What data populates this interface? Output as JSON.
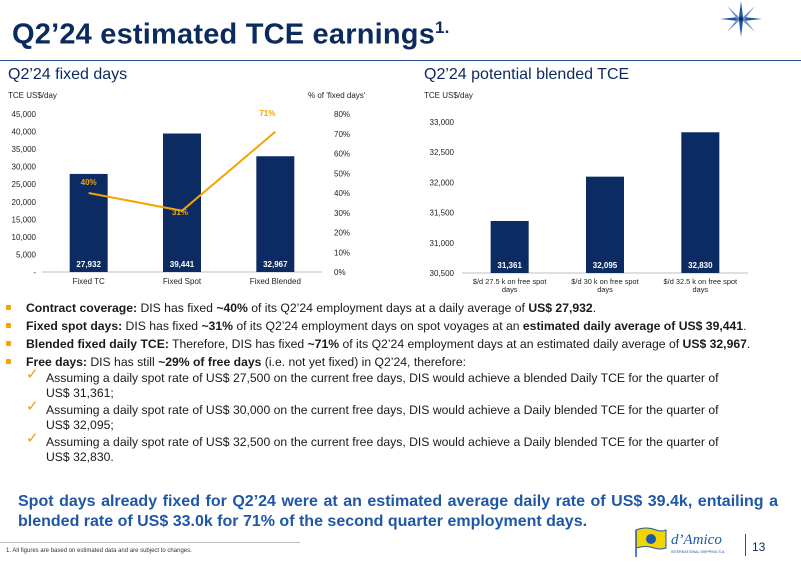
{
  "title": "Q2’24 estimated TCE earnings",
  "title_sup": "1.",
  "chart_data": [
    {
      "type": "bar",
      "title": "Q2’24 fixed days",
      "ylabel": "TCE US$/day",
      "y2label": "% of 'fixed days'",
      "categories": [
        "Fixed TC",
        "Fixed Spot",
        "Fixed Blended"
      ],
      "series": [
        {
          "type": "bar",
          "axis": "left",
          "values": [
            27932,
            39441,
            32967
          ],
          "labels": [
            "27,932",
            "39,441",
            "32,967"
          ],
          "color": "#0d2b63"
        },
        {
          "type": "line",
          "axis": "right",
          "values": [
            40,
            31,
            71
          ],
          "labels": [
            "40%",
            "31%",
            "71%"
          ],
          "color": "#f5a300"
        }
      ],
      "yticks": [
        "-",
        "5,000",
        "10,000",
        "15,000",
        "20,000",
        "25,000",
        "30,000",
        "35,000",
        "40,000",
        "45,000"
      ],
      "ylim": [
        0,
        45000
      ],
      "y2ticks": [
        "0%",
        "10%",
        "20%",
        "30%",
        "40%",
        "50%",
        "60%",
        "70%",
        "80%"
      ],
      "y2lim": [
        0,
        80
      ],
      "grid": false
    },
    {
      "type": "bar",
      "title": "Q2’24 potential blended TCE",
      "ylabel": "TCE US$/day",
      "categories": [
        [
          "$/d 27.5 k on free spot",
          "days"
        ],
        [
          "$/d 30 k on free spot",
          "days"
        ],
        [
          "$/d 32.5 k on free spot",
          "days"
        ]
      ],
      "values": [
        31361,
        32095,
        32830
      ],
      "labels": [
        "31,361",
        "32,095",
        "32,830"
      ],
      "yticks": [
        "30,500",
        "31,000",
        "31,500",
        "32,000",
        "32,500",
        "33,000"
      ],
      "ylim": [
        30500,
        33000
      ],
      "color": "#0d2b63",
      "grid": false
    }
  ],
  "bullets": [
    {
      "bold": "Contract coverage:",
      "t1": " DIS has fixed ",
      "b2": "~40%",
      "t2": " of its Q2’24 employment days at a daily average of ",
      "b3": "US$ 27,932",
      "t3": "."
    },
    {
      "bold": "Fixed spot days:",
      "t1": " DIS has fixed ",
      "b2": "~31%",
      "t2": " of its Q2’24 employment days on spot voyages at an ",
      "b3": "estimated daily average of US$ 39,441",
      "t3": "."
    },
    {
      "bold": "Blended fixed daily TCE:",
      "t1": " Therefore, DIS has fixed ",
      "b2": "~71%",
      "t2": " of its Q2’24 employment days at an estimated daily average of ",
      "b3": "US$ 32,967",
      "t3": "."
    },
    {
      "bold": "Free days:",
      "t1": " DIS has still ",
      "b2": "~29% of free days",
      "t2": " (i.e. not yet fixed) in Q2’24, therefore:",
      "b3": "",
      "t3": ""
    }
  ],
  "sub_bullets": [
    "Assuming a daily spot rate of US$ 27,500 on the current free days, DIS would achieve a blended Daily TCE for the quarter of US$ 31,361;",
    "Assuming a daily spot rate of US$ 30,000 on the current free days, DIS would achieve a Daily blended TCE for the quarter of US$ 32,095;",
    "Assuming a daily spot rate of US$ 32,500 on the current free days, DIS would achieve a Daily blended TCE for the quarter of US$ 32,830."
  ],
  "conclusion": "Spot days already fixed for Q2’24 were at an estimated average daily rate of US$ 39.4k, entailing a blended rate of US$ 33.0k for 71% of the second quarter employment days.",
  "footnote": "1.   All figures are based on estimated data and are subject to changes.",
  "logo_text": "d’Amico",
  "logo_subtext": "INTERNATIONAL SHIPPING S.A.",
  "page_number": "13",
  "colors": {
    "navy": "#0d2b63",
    "orange": "#f5a300",
    "title_blue": "#0b2a5e",
    "conclusion_blue": "#1f57a8"
  }
}
